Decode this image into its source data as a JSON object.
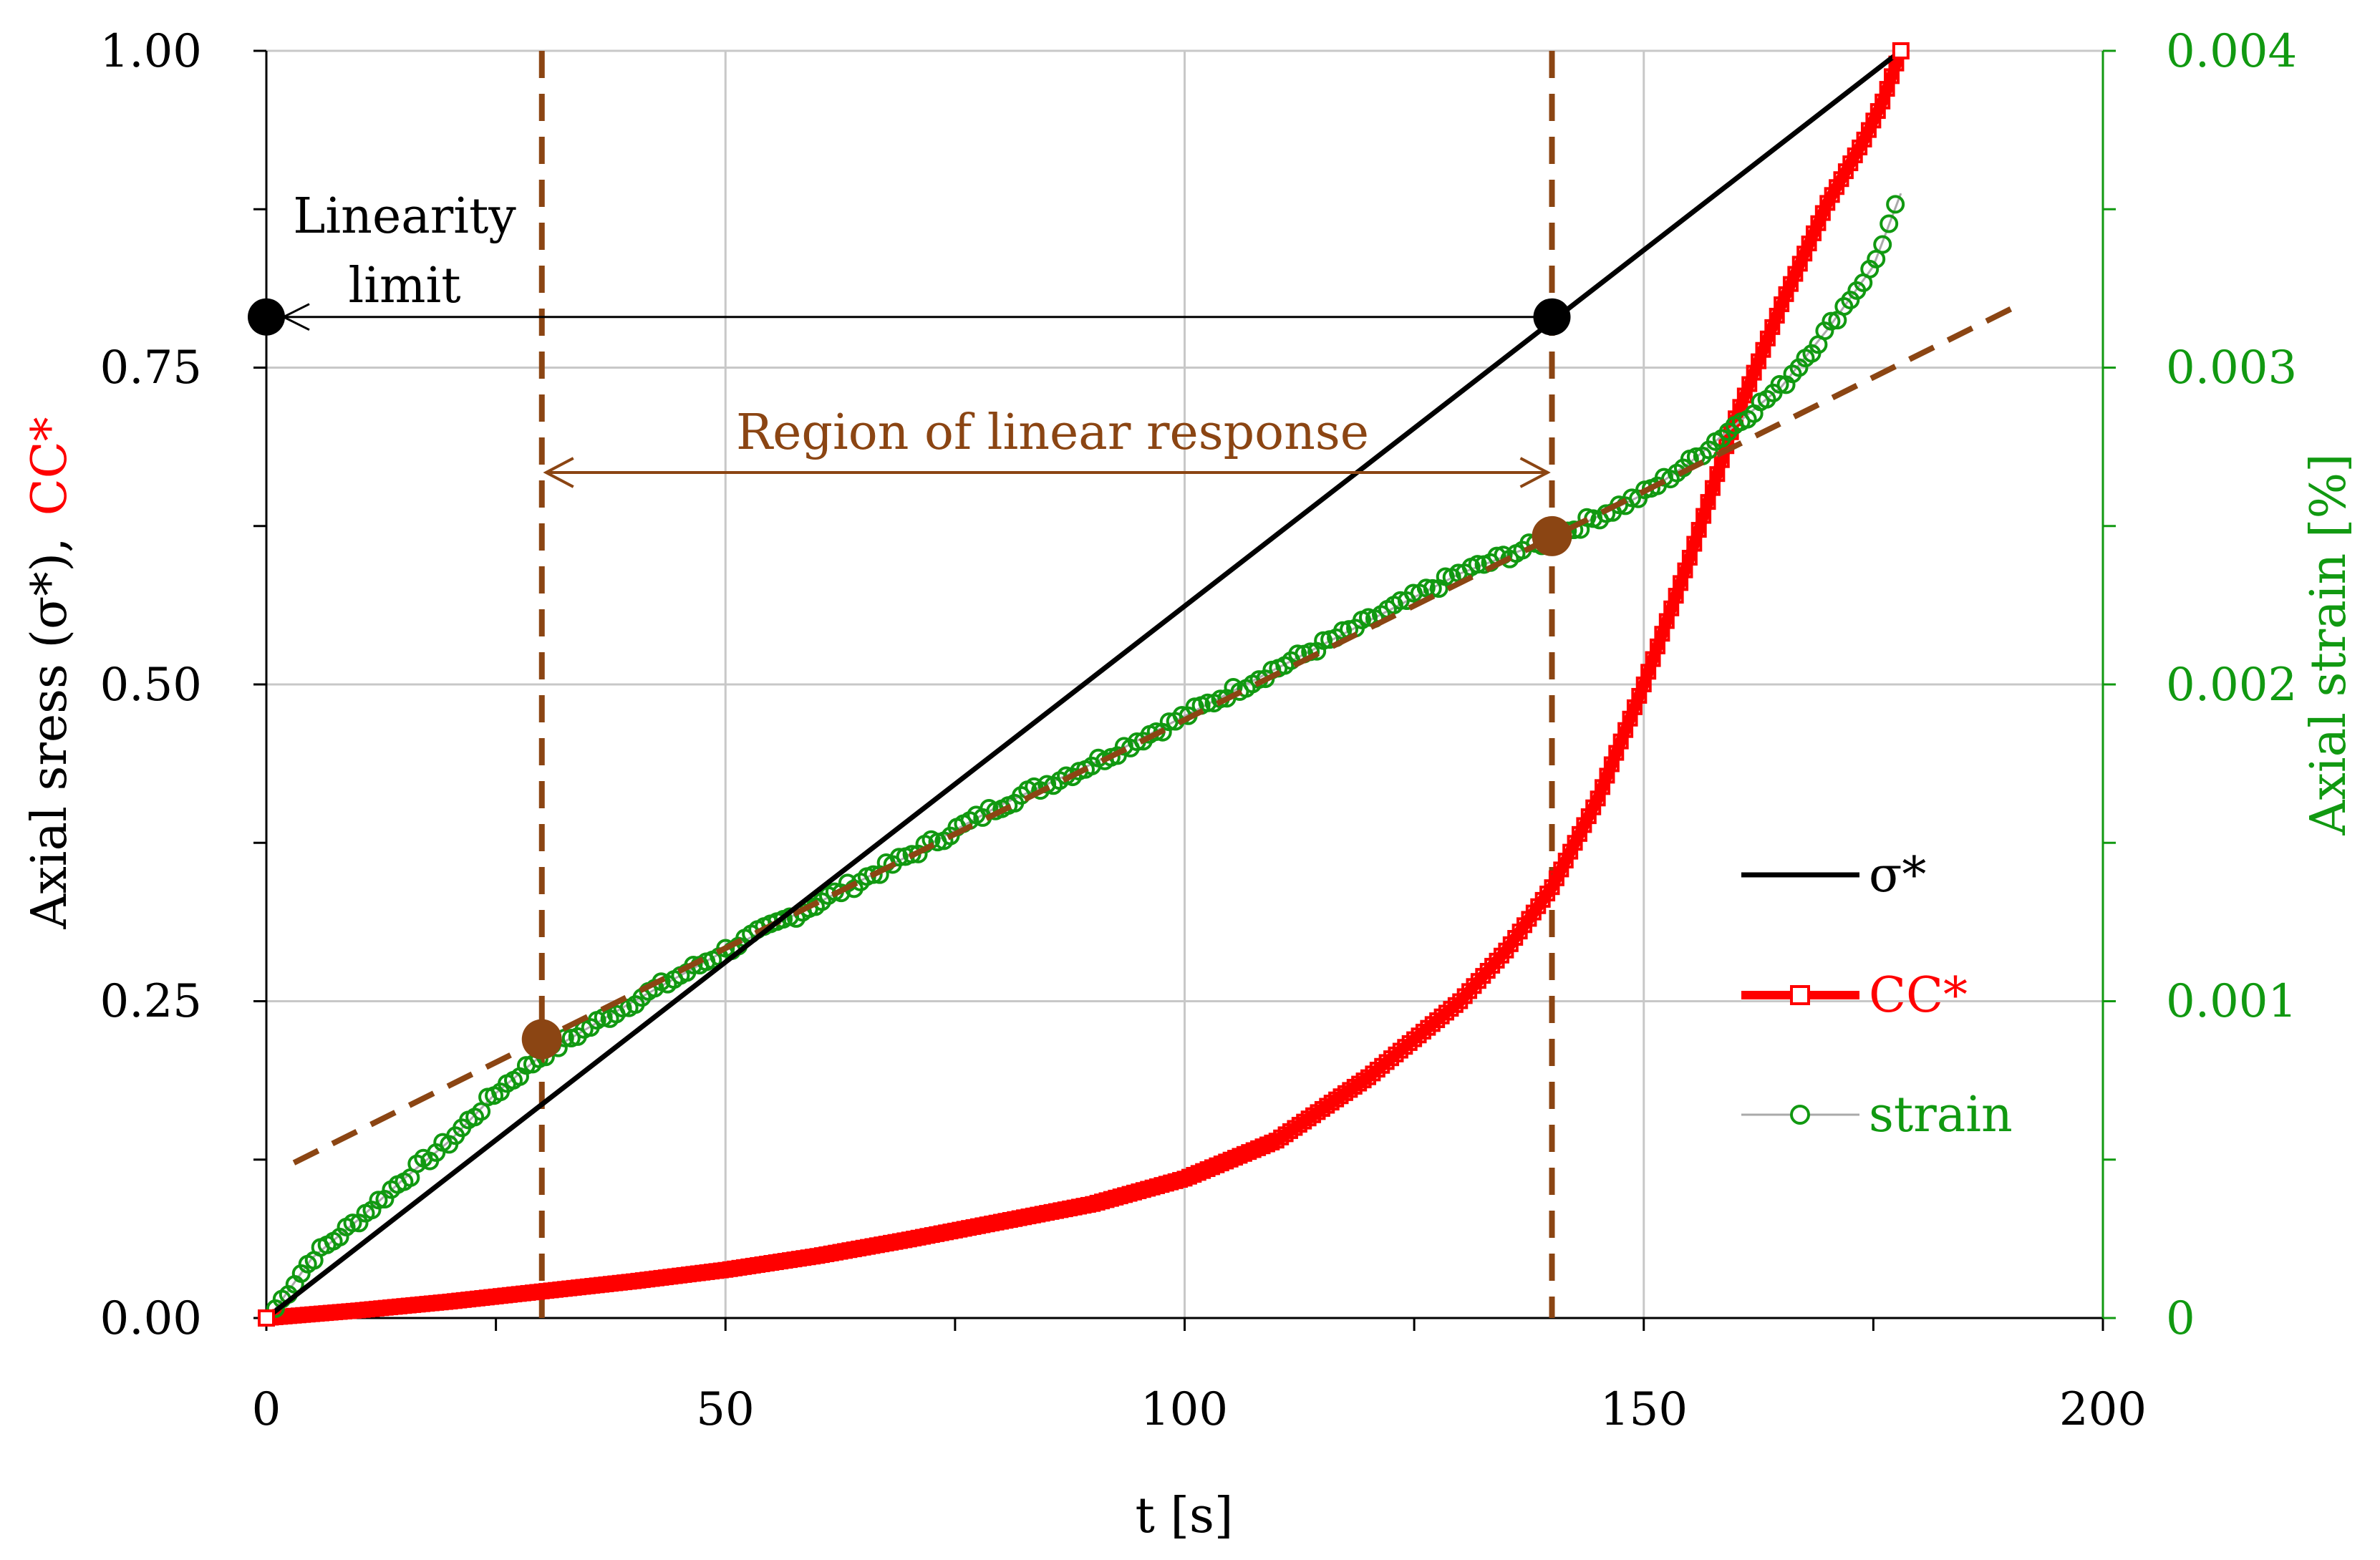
{
  "chart_data": {
    "type": "line",
    "title": "",
    "xlabel": "t [s]",
    "ylabel_parts": [
      "Axial sress (σ*),",
      "CC*"
    ],
    "y2label": "Axial strain [%]",
    "xlim": [
      0,
      200
    ],
    "ylim": [
      0,
      1
    ],
    "y2lim": [
      0,
      0.004
    ],
    "grid": true,
    "legend_position": "right-middle",
    "x_ticks": [
      "0",
      "50",
      "100",
      "150",
      "200"
    ],
    "y_ticks": [
      "0.00",
      "0.25",
      "0.50",
      "0.75",
      "1.00"
    ],
    "y2_ticks": [
      "0",
      "0.001",
      "0.002",
      "0.003",
      "0.004"
    ],
    "series": [
      {
        "name": "σ*",
        "color": "#000000",
        "axis": "left",
        "marker": "none",
        "x": [
          0,
          178
        ],
        "y": [
          0.0,
          1.0
        ]
      },
      {
        "name": "CC*",
        "color": "#ff0000",
        "axis": "left",
        "marker": "square",
        "x": [
          0,
          10,
          20,
          30,
          40,
          50,
          60,
          70,
          80,
          90,
          100,
          110,
          120,
          130,
          135,
          140,
          145,
          150,
          155,
          160,
          165,
          170,
          174,
          176,
          178
        ],
        "y": [
          0.0,
          0.006,
          0.013,
          0.021,
          0.029,
          0.038,
          0.049,
          0.062,
          0.076,
          0.09,
          0.11,
          0.14,
          0.19,
          0.25,
          0.29,
          0.34,
          0.41,
          0.5,
          0.6,
          0.71,
          0.8,
          0.88,
          0.93,
          0.96,
          1.0
        ]
      },
      {
        "name": "strain",
        "color": "#119911",
        "axis": "right",
        "marker": "circle",
        "x": [
          1,
          5,
          10,
          15,
          20,
          25,
          30,
          40,
          50,
          60,
          70,
          80,
          90,
          100,
          110,
          120,
          130,
          140,
          150,
          155,
          160,
          165,
          170,
          175,
          178
        ],
        "y": [
          3e-05,
          0.00019,
          0.00031,
          0.00044,
          0.00056,
          0.00071,
          0.00083,
          0.001,
          0.00116,
          0.00131,
          0.00146,
          0.00162,
          0.00175,
          0.0019,
          0.00205,
          0.0022,
          0.00235,
          0.00246,
          0.0026,
          0.0027,
          0.00282,
          0.00294,
          0.00312,
          0.00332,
          0.00355
        ]
      }
    ],
    "linear_fit": {
      "color": "#8b4513",
      "axis": "right",
      "x": [
        3,
        191
      ],
      "y": [
        0.00049,
        0.0032
      ]
    },
    "vertical_lines": [
      {
        "x": 30,
        "color": "#8b4513"
      },
      {
        "x": 140,
        "color": "#8b4513"
      }
    ],
    "fit_points": [
      {
        "x": 30,
        "y": 0.22
      },
      {
        "x": 140,
        "y": 0.617
      }
    ],
    "linearity_limit_points": [
      {
        "x": 0,
        "y": 0.79
      },
      {
        "x": 140,
        "y": 0.79
      }
    ],
    "annotations": {
      "linearity_limit": [
        "Linearity",
        "limit"
      ],
      "region": "Region of linear response"
    },
    "colors": {
      "sigma": "#000000",
      "cc": "#ff0000",
      "strain": "#119911",
      "fit": "#8b4513",
      "grid": "#c8c8c8"
    }
  }
}
